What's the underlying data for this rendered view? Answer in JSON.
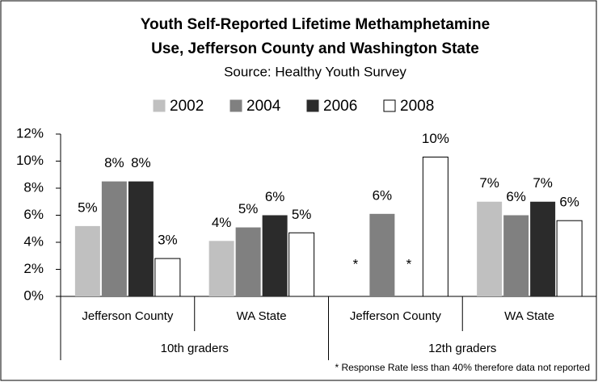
{
  "chart_data": {
    "type": "bar",
    "title": [
      "Youth Self-Reported Lifetime Methamphetamine",
      "Use, Jefferson County and Washington State"
    ],
    "subtitle": "Source: Healthy Youth Survey",
    "categories": [
      "Jefferson County",
      "WA State",
      "Jefferson County",
      "WA State"
    ],
    "groups": [
      "10th graders",
      "12th graders"
    ],
    "series": [
      {
        "name": "2002",
        "color": "#c0c0c0",
        "values": [
          5.2,
          4.1,
          null,
          7.0
        ],
        "value_labels": [
          "5%",
          "4%",
          "*",
          "7%"
        ]
      },
      {
        "name": "2004",
        "color": "#808080",
        "values": [
          8.5,
          5.1,
          6.1,
          6.0
        ],
        "value_labels": [
          "8%",
          "5%",
          "6%",
          "6%"
        ]
      },
      {
        "name": "2006",
        "color": "#2b2b2b",
        "values": [
          8.5,
          6.0,
          null,
          7.0
        ],
        "value_labels": [
          "8%",
          "6%",
          "*",
          "7%"
        ]
      },
      {
        "name": "2008",
        "color": "#ffffff",
        "values": [
          2.8,
          4.7,
          10.3,
          5.6
        ],
        "value_labels": [
          "3%",
          "5%",
          "10%",
          "6%"
        ]
      }
    ],
    "ylim": [
      0,
      12
    ],
    "yticks": [
      {
        "value": 0,
        "label": "0%"
      },
      {
        "value": 2,
        "label": "2%"
      },
      {
        "value": 4,
        "label": "4%"
      },
      {
        "value": 6,
        "label": "6%"
      },
      {
        "value": 8,
        "label": "8%"
      },
      {
        "value": 10,
        "label": "10%"
      },
      {
        "value": 12,
        "label": "12%"
      }
    ],
    "legend": "top",
    "footnote": "* Response Rate less than 40% therefore data not reported"
  }
}
